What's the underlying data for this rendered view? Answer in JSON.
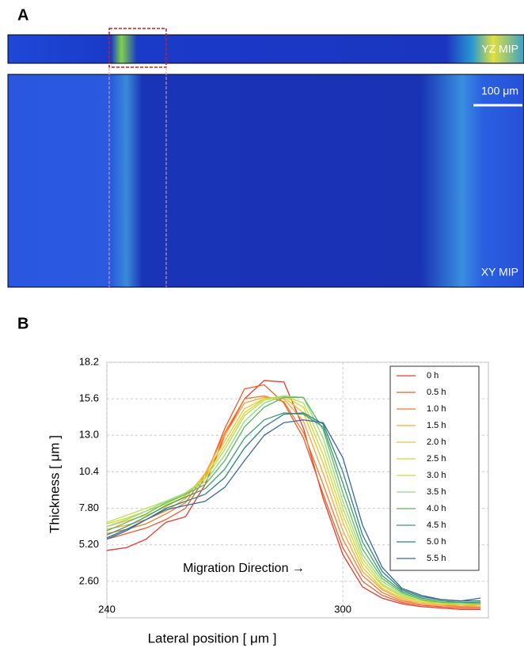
{
  "panel_a": {
    "label": "A",
    "yz_label": "YZ MIP",
    "scale_bar": "100 μm",
    "xy_label": "XY MIP"
  },
  "panel_b": {
    "label": "B"
  },
  "chart_data": {
    "type": "line",
    "x_label": "Lateral position [ μm ]",
    "y_label": "Thickness [ μm ]",
    "annotation": "Migration Direction →",
    "xlim": [
      240,
      337
    ],
    "ylim": [
      0,
      18.2
    ],
    "xticks": [
      240,
      300
    ],
    "yticks": [
      {
        "value": 2.6,
        "label": "2.60"
      },
      {
        "value": 5.2,
        "label": "5.20"
      },
      {
        "value": 7.8,
        "label": "7.80"
      },
      10.4,
      {
        "value": 13,
        "label": "13.0"
      },
      15.6,
      18.2
    ],
    "grid": true,
    "legend": "upper right",
    "x": [
      240,
      245,
      250,
      255,
      260,
      265,
      270,
      275,
      280,
      285,
      290,
      295,
      300,
      305,
      310,
      315,
      320,
      325,
      330,
      335
    ],
    "series": [
      {
        "name": "0 h",
        "color": "#e8392a",
        "values": [
          4.8,
          5.0,
          5.6,
          6.8,
          7.2,
          9.5,
          13.0,
          15.6,
          16.9,
          16.8,
          13.5,
          8.5,
          4.5,
          2.2,
          1.4,
          1.0,
          0.8,
          0.7,
          0.6,
          0.6
        ]
      },
      {
        "name": "0.5 h",
        "color": "#f05a2a",
        "values": [
          5.6,
          6.0,
          6.4,
          7.0,
          7.8,
          10.0,
          13.5,
          16.3,
          16.6,
          15.3,
          12.8,
          8.8,
          5.0,
          2.6,
          1.6,
          1.1,
          0.9,
          0.8,
          0.7,
          0.7
        ]
      },
      {
        "name": "1.0 h",
        "color": "#f47b2a",
        "values": [
          6.0,
          6.3,
          6.7,
          7.4,
          8.2,
          10.2,
          13.2,
          15.6,
          15.8,
          15.4,
          13.2,
          9.5,
          5.6,
          3.0,
          1.8,
          1.2,
          1.0,
          0.9,
          0.8,
          0.8
        ]
      },
      {
        "name": "1.5 h",
        "color": "#f9a43a",
        "values": [
          6.3,
          6.6,
          7.0,
          7.6,
          8.5,
          10.3,
          13.0,
          15.3,
          15.7,
          15.6,
          14.0,
          10.3,
          6.2,
          3.3,
          2.0,
          1.3,
          1.0,
          0.9,
          0.9,
          0.8
        ]
      },
      {
        "name": "2.0 h",
        "color": "#f2c12e",
        "values": [
          6.5,
          6.9,
          7.3,
          7.9,
          8.7,
          10.2,
          12.6,
          14.9,
          15.6,
          15.7,
          14.6,
          11.0,
          6.8,
          3.6,
          2.1,
          1.4,
          1.1,
          1.0,
          0.9,
          0.9
        ]
      },
      {
        "name": "2.5 h",
        "color": "#d6d62a",
        "values": [
          6.7,
          7.1,
          7.6,
          8.1,
          8.8,
          10.0,
          12.3,
          14.6,
          15.6,
          15.8,
          15.0,
          11.6,
          7.3,
          3.9,
          2.3,
          1.5,
          1.2,
          1.0,
          1.0,
          0.9
        ]
      },
      {
        "name": "3.0 h",
        "color": "#b5e04a",
        "values": [
          6.8,
          7.3,
          7.8,
          8.3,
          8.9,
          9.9,
          12.0,
          14.4,
          15.5,
          15.8,
          15.3,
          12.2,
          7.8,
          4.2,
          2.4,
          1.6,
          1.2,
          1.1,
          1.0,
          1.0
        ]
      },
      {
        "name": "3.5 h",
        "color": "#8fdc7a",
        "values": [
          6.5,
          7.0,
          7.6,
          8.3,
          8.9,
          9.7,
          11.6,
          14.0,
          15.3,
          15.8,
          15.7,
          12.8,
          8.3,
          4.5,
          2.6,
          1.7,
          1.3,
          1.1,
          1.0,
          1.0
        ]
      },
      {
        "name": "4.0 h",
        "color": "#5cb85c",
        "values": [
          6.2,
          6.8,
          7.4,
          8.2,
          8.8,
          9.5,
          11.2,
          13.6,
          15.0,
          15.7,
          15.7,
          13.4,
          8.9,
          4.9,
          2.8,
          1.8,
          1.3,
          1.1,
          1.1,
          1.0
        ]
      },
      {
        "name": "4.5 h",
        "color": "#3a9e6a",
        "values": [
          5.9,
          6.5,
          7.2,
          8.0,
          8.6,
          9.2,
          10.6,
          12.8,
          14.1,
          14.6,
          14.5,
          13.6,
          9.6,
          5.4,
          3.0,
          1.9,
          1.4,
          1.2,
          1.1,
          1.1
        ]
      },
      {
        "name": "5.0 h",
        "color": "#2f7f80",
        "values": [
          5.6,
          6.2,
          7.0,
          7.8,
          8.3,
          8.8,
          10.0,
          12.1,
          13.6,
          14.5,
          14.6,
          13.8,
          10.4,
          5.9,
          3.3,
          2.0,
          1.5,
          1.3,
          1.2,
          1.2
        ]
      },
      {
        "name": "5.5 h",
        "color": "#3a64a8",
        "values": [
          5.7,
          6.3,
          7.0,
          7.7,
          8.0,
          8.3,
          9.3,
          11.2,
          13.0,
          13.9,
          14.1,
          13.9,
          11.4,
          6.6,
          3.6,
          2.1,
          1.6,
          1.3,
          1.2,
          1.4
        ]
      }
    ]
  }
}
